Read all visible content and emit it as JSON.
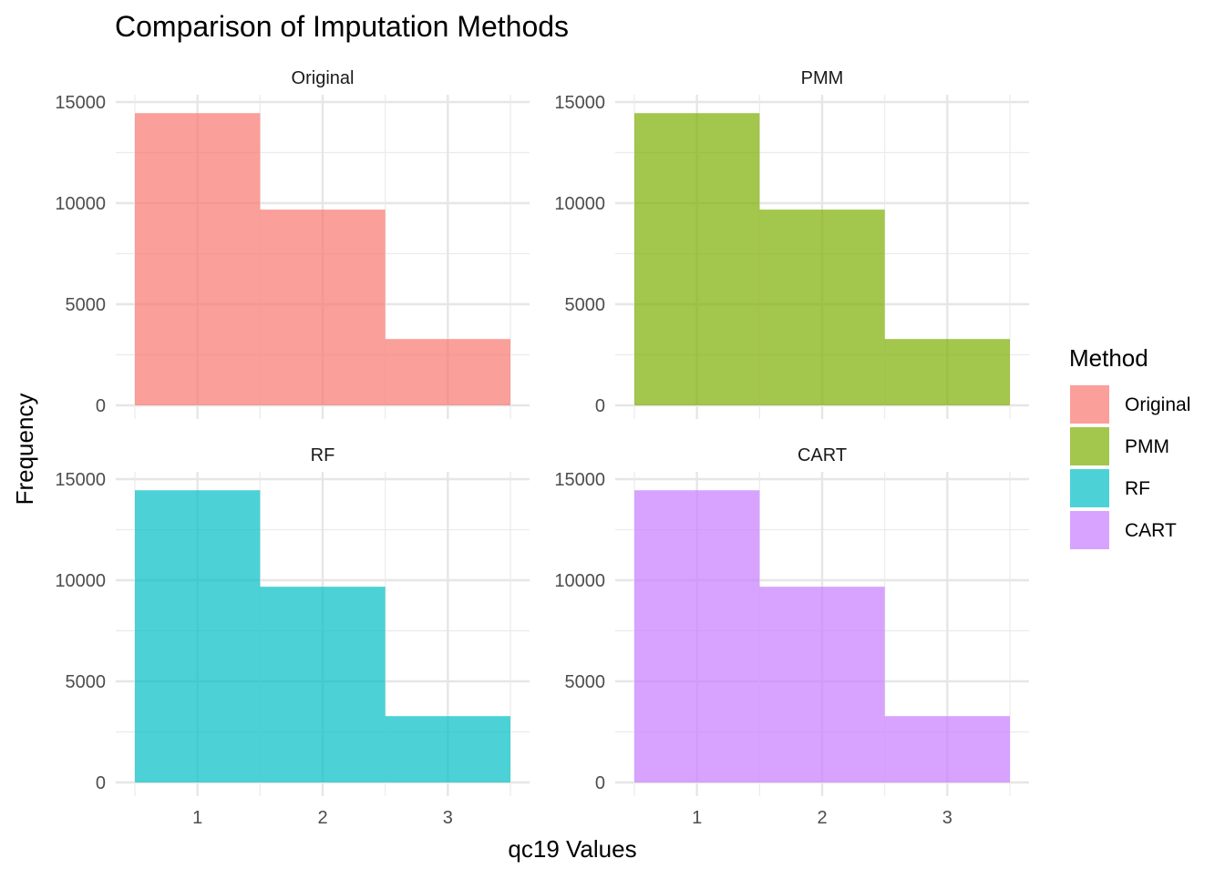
{
  "chart_data": {
    "type": "bar",
    "title": "Comparison of Imputation Methods",
    "xlabel": "qc19 Values",
    "ylabel": "Frequency",
    "x_categories": [
      1,
      2,
      3
    ],
    "xlim": [
      0.5,
      3.5
    ],
    "ylim": [
      0,
      15000
    ],
    "y_ticks": [
      0,
      5000,
      10000,
      15000
    ],
    "grid": true,
    "legend": {
      "title": "Method",
      "position": "right"
    },
    "panels": [
      {
        "name": "Original",
        "values": [
          14450,
          9680,
          3280
        ],
        "color": "#F8766D"
      },
      {
        "name": "PMM",
        "values": [
          14450,
          9680,
          3280
        ],
        "color": "#7CAE00"
      },
      {
        "name": "RF",
        "values": [
          14450,
          9680,
          3280
        ],
        "color": "#00BFC4"
      },
      {
        "name": "CART",
        "values": [
          14450,
          9680,
          3280
        ],
        "color": "#C77CFF"
      }
    ],
    "bar_opacity": 0.7
  }
}
